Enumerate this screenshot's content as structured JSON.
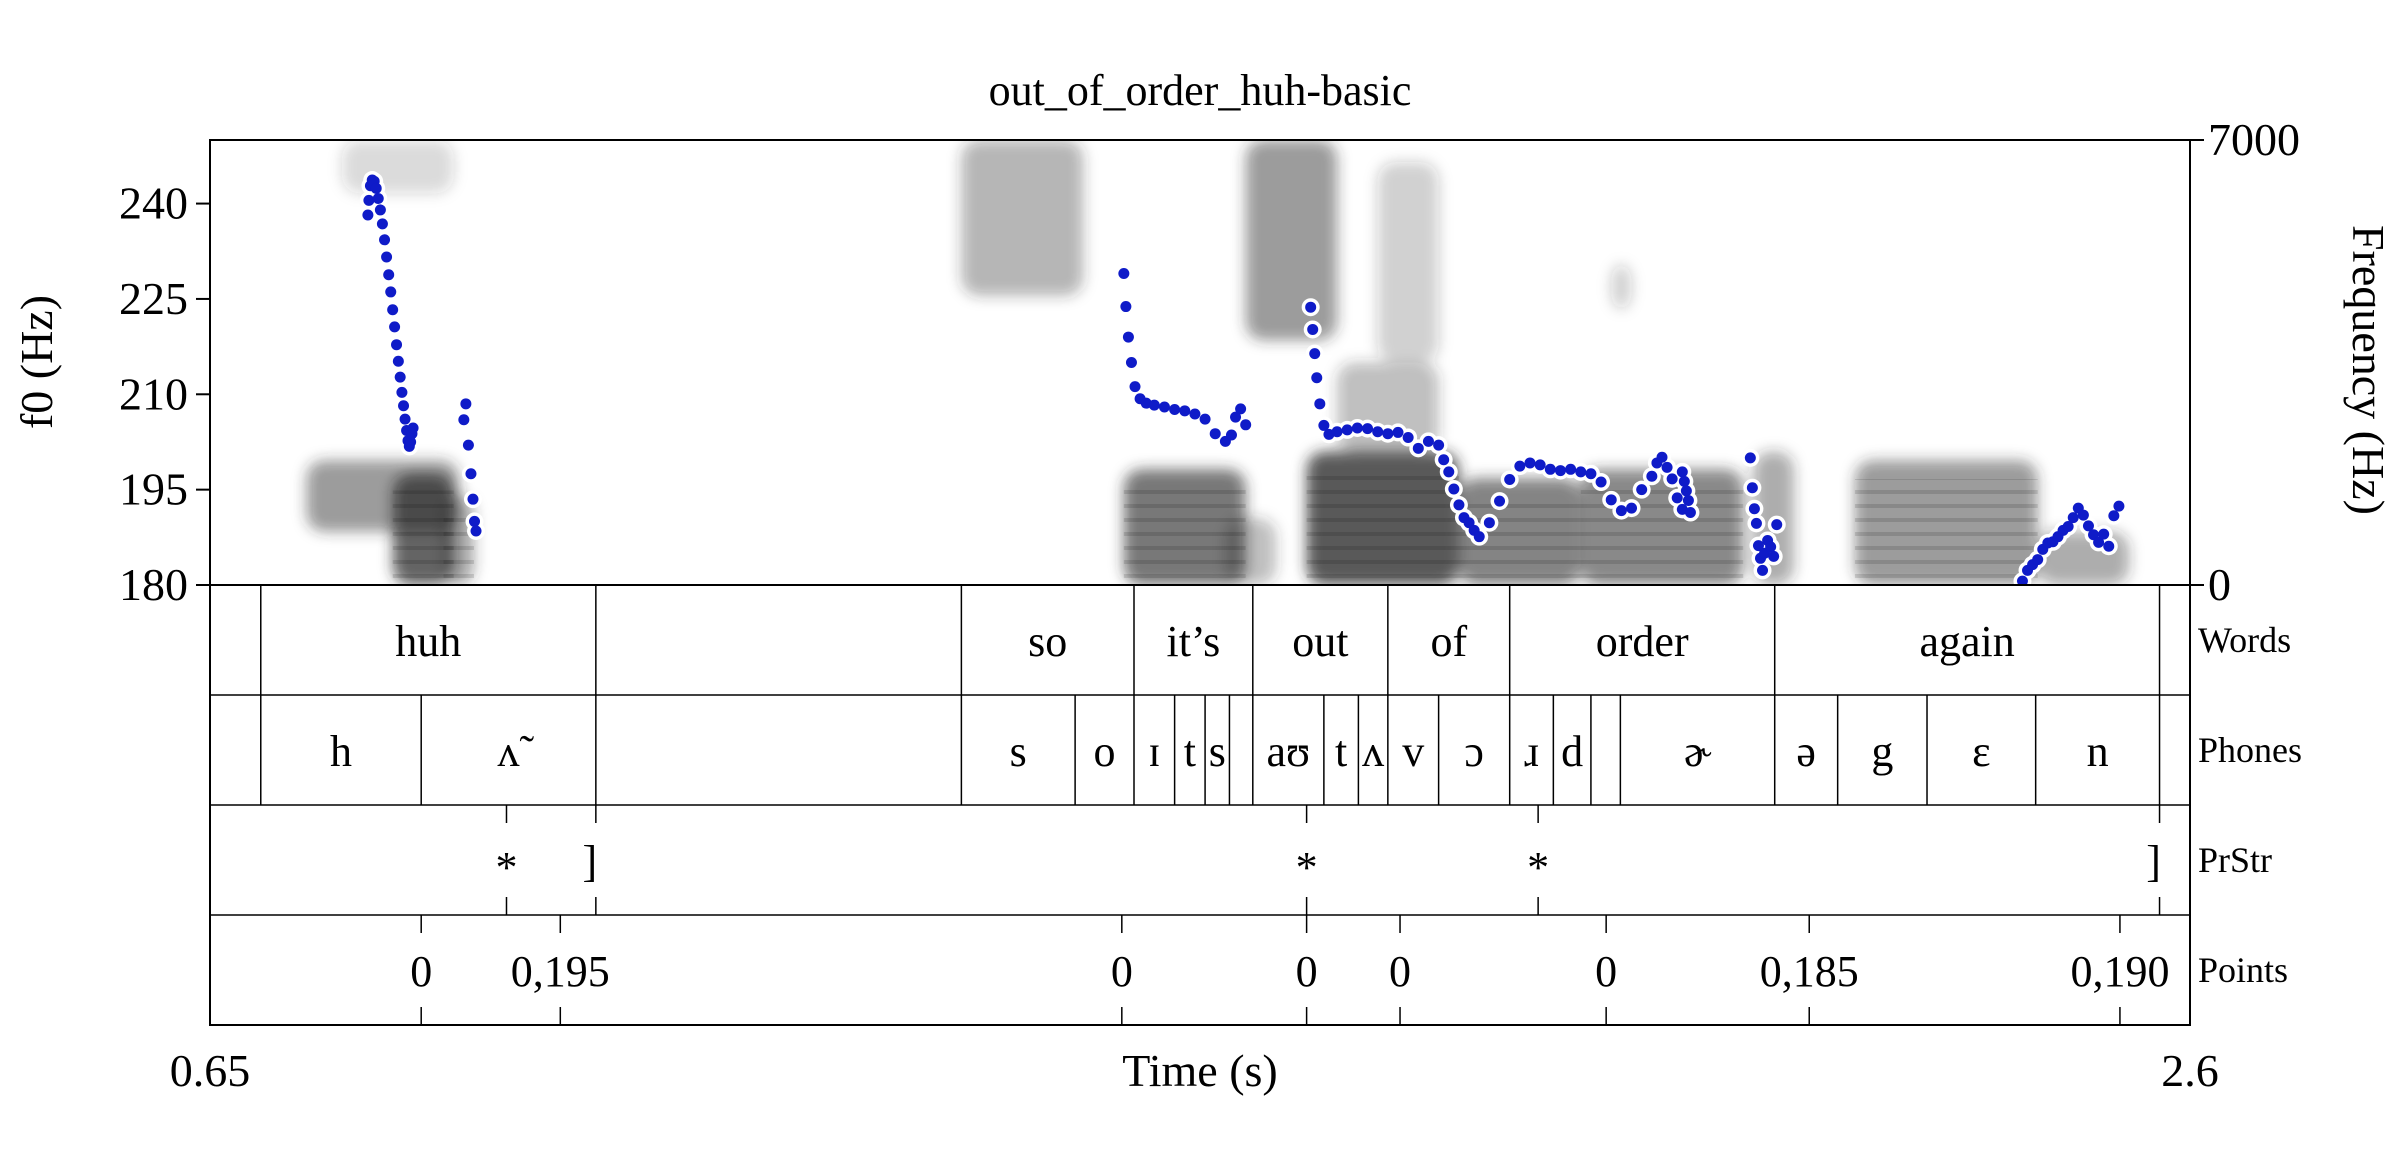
{
  "chart_data": {
    "type": "scatter",
    "title": "out_of_order_huh-basic",
    "xlabel": "Time (s)",
    "ylabel_left": "f0 (Hz)",
    "ylabel_right": "Frequency (Hz)",
    "xlim": [
      0.65,
      2.6
    ],
    "ylim_left": [
      180,
      250
    ],
    "ylim_right": [
      0,
      7000
    ],
    "x_tick_labels": [
      "0.65",
      "2.6"
    ],
    "left_tick_labels": [
      "180",
      "195",
      "210",
      "225",
      "240"
    ],
    "right_tick_labels": [
      "0",
      "7000"
    ],
    "colors": {
      "f0_points": "#0f1bc8",
      "spectrogram": "#2a2a2a",
      "axes": "#000000"
    },
    "f0_series": [
      {
        "segment": 1,
        "x": [
          0.8055,
          0.8065,
          0.808,
          0.8098,
          0.8117,
          0.8137,
          0.8157,
          0.8178,
          0.8198,
          0.8219,
          0.8239,
          0.826,
          0.828,
          0.8299,
          0.8318,
          0.8337,
          0.8355,
          0.8373,
          0.839,
          0.8406,
          0.8421,
          0.8436,
          0.845,
          0.8463,
          0.8476,
          0.8489,
          0.85
        ],
        "y": [
          238.2,
          240.5,
          242.8,
          243.7,
          243.5,
          242.4,
          240.8,
          239.0,
          236.8,
          234.3,
          231.6,
          228.8,
          226.1,
          223.3,
          220.6,
          217.8,
          215.2,
          212.7,
          210.3,
          208.2,
          206.1,
          204.3,
          202.7,
          201.8,
          202.5,
          203.8,
          204.7
        ]
      },
      {
        "segment": 2,
        "x": [
          0.9,
          0.902,
          0.9045,
          0.907,
          0.909,
          0.9105,
          0.912
        ],
        "y": [
          206.0,
          208.5,
          202.0,
          197.5,
          193.5,
          190.0,
          188.5
        ]
      },
      {
        "segment": 3,
        "x": [
          1.55,
          1.552,
          1.5545,
          1.5575,
          1.561,
          1.566,
          1.572,
          1.58,
          1.59,
          1.6,
          1.61,
          1.62,
          1.63,
          1.64,
          1.65,
          1.656,
          1.66,
          1.665,
          1.67
        ],
        "y": [
          229.0,
          223.8,
          219.0,
          215.0,
          211.2,
          209.3,
          208.6,
          208.3,
          208.0,
          207.6,
          207.4,
          206.9,
          206.1,
          203.8,
          202.6,
          203.6,
          206.4,
          207.7,
          205.2
        ]
      },
      {
        "segment": 4,
        "x": [
          1.734,
          1.736,
          1.738,
          1.74,
          1.743,
          1.747,
          1.752,
          1.76,
          1.77,
          1.78,
          1.79,
          1.8,
          1.81,
          1.82,
          1.83,
          1.84,
          1.85,
          1.86,
          1.865,
          1.87,
          1.875,
          1.88,
          1.885,
          1.89,
          1.895,
          1.9,
          1.91,
          1.92,
          1.93,
          1.94,
          1.95,
          1.96,
          1.97,
          1.98,
          1.99,
          2.0,
          2.01,
          2.02,
          2.03,
          2.04,
          2.05,
          2.06,
          2.07,
          2.075,
          2.08,
          2.085,
          2.09,
          2.095,
          2.1
        ],
        "y": [
          223.7,
          220.2,
          216.4,
          212.6,
          208.5,
          205.1,
          203.7,
          204.1,
          204.4,
          204.7,
          204.6,
          204.1,
          203.8,
          204.0,
          203.2,
          201.5,
          202.6,
          202.0,
          199.7,
          197.8,
          195.1,
          192.6,
          190.6,
          189.8,
          188.6,
          187.6,
          189.8,
          193.2,
          196.6,
          198.7,
          199.2,
          198.9,
          198.2,
          198.0,
          198.2,
          197.8,
          197.5,
          196.2,
          193.4,
          191.7,
          192.1,
          195.0,
          197.1,
          199.2,
          200.1,
          198.5,
          196.7,
          193.7,
          191.9
        ]
      },
      {
        "segment": 5,
        "x": [
          2.1,
          2.102,
          2.104,
          2.106,
          2.108
        ],
        "y": [
          197.8,
          196.3,
          194.8,
          193.3,
          191.4
        ]
      },
      {
        "segment": 6,
        "x": [
          2.167,
          2.169,
          2.171,
          2.173,
          2.175,
          2.177,
          2.179,
          2.181,
          2.184,
          2.187,
          2.19,
          2.193
        ],
        "y": [
          200.0,
          195.3,
          192.0,
          189.7,
          186.2,
          184.2,
          182.3,
          185.0,
          187.0,
          186.0,
          184.5,
          189.5
        ]
      },
      {
        "segment": 7,
        "x": [
          2.435,
          2.44,
          2.445,
          2.45,
          2.455,
          2.46,
          2.465,
          2.47,
          2.475,
          2.48,
          2.485,
          2.49,
          2.495,
          2.5,
          2.505,
          2.51,
          2.515,
          2.52,
          2.525,
          2.53
        ],
        "y": [
          180.6,
          182.3,
          183.2,
          184.0,
          185.6,
          186.6,
          186.8,
          187.6,
          188.6,
          189.2,
          190.6,
          192.1,
          191.0,
          189.3,
          187.9,
          186.7,
          188.0,
          186.1,
          190.9,
          192.4
        ]
      }
    ],
    "voiced_regions": [
      {
        "x0": 0.745,
        "x1": 0.895,
        "f0": 0.12,
        "f1": 0.28,
        "dark": 0.55
      },
      {
        "x0": 0.83,
        "x1": 0.89,
        "f0": 0.0,
        "f1": 0.25,
        "dark": 0.85
      },
      {
        "x0": 0.88,
        "x1": 0.91,
        "f0": 0.0,
        "f1": 0.2,
        "dark": 0.5
      },
      {
        "x0": 0.78,
        "x1": 0.89,
        "f0": 0.88,
        "f1": 1.0,
        "dark": 0.2
      },
      {
        "x0": 1.39,
        "x1": 1.51,
        "f0": 0.65,
        "f1": 1.0,
        "dark": 0.4
      },
      {
        "x0": 1.55,
        "x1": 1.67,
        "f0": 0.0,
        "f1": 0.26,
        "dark": 0.75
      },
      {
        "x0": 1.65,
        "x1": 1.7,
        "f0": 0.0,
        "f1": 0.15,
        "dark": 0.35
      },
      {
        "x0": 1.67,
        "x1": 1.76,
        "f0": 0.55,
        "f1": 1.0,
        "dark": 0.55
      },
      {
        "x0": 1.73,
        "x1": 1.88,
        "f0": 0.0,
        "f1": 0.3,
        "dark": 0.9
      },
      {
        "x0": 1.76,
        "x1": 1.86,
        "f0": 0.3,
        "f1": 0.5,
        "dark": 0.35
      },
      {
        "x0": 1.8,
        "x1": 1.86,
        "f0": 0.5,
        "f1": 0.95,
        "dark": 0.25
      },
      {
        "x0": 1.88,
        "x1": 2.0,
        "f0": 0.0,
        "f1": 0.24,
        "dark": 0.7
      },
      {
        "x0": 2.0,
        "x1": 2.16,
        "f0": 0.0,
        "f1": 0.26,
        "dark": 0.65
      },
      {
        "x0": 2.03,
        "x1": 2.05,
        "f0": 0.62,
        "f1": 0.72,
        "dark": 0.25
      },
      {
        "x0": 2.17,
        "x1": 2.21,
        "f0": 0.0,
        "f1": 0.3,
        "dark": 0.45
      },
      {
        "x0": 2.27,
        "x1": 2.45,
        "f0": 0.0,
        "f1": 0.28,
        "dark": 0.55
      },
      {
        "x0": 2.45,
        "x1": 2.54,
        "f0": 0.0,
        "f1": 0.12,
        "dark": 0.45
      }
    ]
  },
  "tiers": [
    {
      "name": "Words",
      "boundaries": [
        0.7,
        1.03,
        1.39,
        1.56,
        1.677,
        1.81,
        1.93,
        2.191,
        2.57
      ],
      "labels": [
        {
          "text": "huh",
          "x": 0.865
        },
        {
          "text": "so",
          "x": 1.475
        },
        {
          "text": "it’s",
          "x": 1.6185
        },
        {
          "text": "out",
          "x": 1.7435
        },
        {
          "text": "of",
          "x": 1.87
        },
        {
          "text": "order",
          "x": 2.0605
        },
        {
          "text": "again",
          "x": 2.3805
        }
      ]
    },
    {
      "name": "Phones",
      "boundaries": [
        0.7,
        0.858,
        1.03,
        1.39,
        1.502,
        1.56,
        1.6,
        1.63,
        1.654,
        1.677,
        1.747,
        1.781,
        1.81,
        1.86,
        1.93,
        1.973,
        2.01,
        2.039,
        2.191,
        2.253,
        2.341,
        2.448,
        2.57
      ],
      "labels": [
        {
          "text": "h",
          "x": 0.779
        },
        {
          "text": "ʌ̃",
          "x": 0.944
        },
        {
          "text": "s",
          "x": 1.446
        },
        {
          "text": "o",
          "x": 1.531
        },
        {
          "text": "ɪ",
          "x": 1.58
        },
        {
          "text": "t",
          "x": 1.615
        },
        {
          "text": "s",
          "x": 1.642
        },
        {
          "text": "aʊ",
          "x": 1.712
        },
        {
          "text": "t",
          "x": 1.764
        },
        {
          "text": "ʌ",
          "x": 1.7955
        },
        {
          "text": "v",
          "x": 1.835
        },
        {
          "text": "ɔ",
          "x": 1.895
        },
        {
          "text": "ɹ",
          "x": 1.9515
        },
        {
          "text": "d",
          "x": 1.9915
        },
        {
          "text": "ɚ",
          "x": 2.115
        },
        {
          "text": "ə",
          "x": 2.222
        },
        {
          "text": "g",
          "x": 2.297
        },
        {
          "text": "ɛ",
          "x": 2.3945
        },
        {
          "text": "n",
          "x": 2.509
        }
      ]
    },
    {
      "name": "PrStr",
      "boundaries": [],
      "points": [
        {
          "x": 0.942,
          "text": "*"
        },
        {
          "x": 1.03,
          "text": "]"
        },
        {
          "x": 1.73,
          "text": "*"
        },
        {
          "x": 1.958,
          "text": "*"
        },
        {
          "x": 2.57,
          "text": "]"
        }
      ]
    },
    {
      "name": "Points",
      "boundaries": [],
      "points": [
        {
          "x": 0.858,
          "text": "0"
        },
        {
          "x": 0.995,
          "text": "0,195"
        },
        {
          "x": 1.548,
          "text": "0"
        },
        {
          "x": 1.73,
          "text": "0"
        },
        {
          "x": 1.822,
          "text": "0"
        },
        {
          "x": 2.025,
          "text": "0"
        },
        {
          "x": 2.225,
          "text": "0,185"
        },
        {
          "x": 2.531,
          "text": "0,190"
        }
      ]
    }
  ]
}
